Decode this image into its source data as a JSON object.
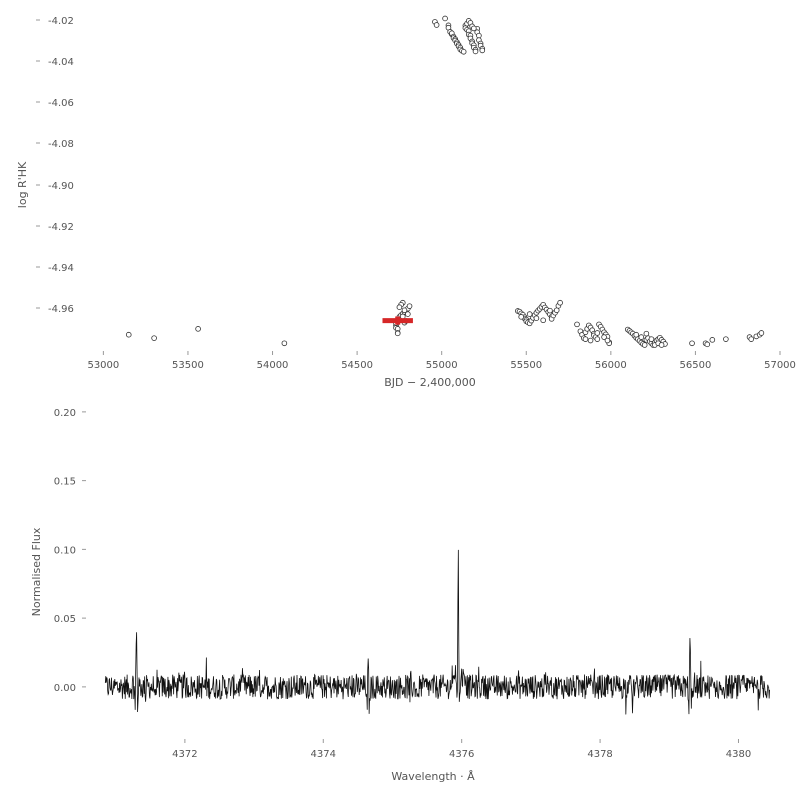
{
  "chart_data": [
    {
      "type": "scatter",
      "title": "",
      "xlabel": "BJD − 2,400,000",
      "ylabel": "log R'HK",
      "xlim": [
        52850,
        57000
      ],
      "ylim": [
        -4.975,
        -4.015
      ],
      "y_inverted": true,
      "grid": false,
      "x_ticks": [
        {
          "v": 53000,
          "label": "53000"
        },
        {
          "v": 53500,
          "label": "53500"
        },
        {
          "v": 54000,
          "label": "54000"
        },
        {
          "v": 54500,
          "label": "54500"
        },
        {
          "v": 55000,
          "label": "55000"
        },
        {
          "v": 55500,
          "label": "55500"
        },
        {
          "v": 56000,
          "label": "56000"
        },
        {
          "v": 56500,
          "label": "56500"
        },
        {
          "v": 57000,
          "label": "57000"
        }
      ],
      "y_ticks": [
        {
          "v": -4.02,
          "label": "-4.02"
        },
        {
          "v": -4.04,
          "label": "-4.04"
        },
        {
          "v": -4.06,
          "label": "-4.06"
        },
        {
          "v": -4.08,
          "label": "-4.08"
        },
        {
          "v": -4.9,
          "label": "-4.90"
        },
        {
          "v": -4.92,
          "label": "-4.92"
        },
        {
          "v": -4.94,
          "label": "-4.94"
        },
        {
          "v": -4.96,
          "label": "-4.96"
        }
      ],
      "marker_color": "#333333",
      "highlight_color": "#d62728",
      "highlight": {
        "x": 54740,
        "y": -4.904,
        "xerr": 90,
        "yerr": 0.012
      },
      "points": [
        [
          53150,
          -4.945
        ],
        [
          53300,
          -4.955
        ],
        [
          53560,
          -4.928
        ],
        [
          54070,
          -4.97
        ],
        [
          54730,
          -4.918
        ],
        [
          54730,
          -4.911
        ],
        [
          54740,
          -4.906
        ],
        [
          54750,
          -4.902
        ],
        [
          54730,
          -4.925
        ],
        [
          54740,
          -4.928
        ],
        [
          54740,
          -4.94
        ],
        [
          54740,
          -4.941
        ],
        [
          54750,
          -4.897
        ],
        [
          54750,
          -4.893
        ],
        [
          54760,
          -4.888
        ],
        [
          54770,
          -4.884
        ],
        [
          54780,
          -4.879
        ],
        [
          54790,
          -4.875
        ],
        [
          54800,
          -4.869
        ],
        [
          54810,
          -4.862
        ],
        [
          54770,
          -4.852
        ],
        [
          54760,
          -4.858
        ],
        [
          54750,
          -4.865
        ],
        [
          54780,
          -4.91
        ],
        [
          54790,
          -4.905
        ],
        [
          54800,
          -4.885
        ],
        [
          54780,
          -4.874
        ],
        [
          54770,
          -4.892
        ],
        [
          54960,
          -4.035
        ],
        [
          54970,
          -4.044
        ],
        [
          55020,
          -4.025
        ],
        [
          55040,
          -4.045
        ],
        [
          55040,
          -4.052
        ],
        [
          55050,
          -4.064
        ],
        [
          55060,
          -4.071
        ],
        [
          55060,
          -4.068
        ],
        [
          55070,
          -4.078
        ],
        [
          55070,
          -4.082
        ],
        [
          55080,
          -4.085
        ],
        [
          55080,
          -4.089
        ],
        [
          55090,
          -4.094
        ],
        [
          55090,
          -4.098
        ],
        [
          55100,
          -4.102
        ],
        [
          55100,
          -4.106
        ],
        [
          55110,
          -4.11
        ],
        [
          55110,
          -4.115
        ],
        [
          55120,
          -4.119
        ],
        [
          55130,
          -4.122
        ],
        [
          55140,
          -4.046
        ],
        [
          55140,
          -4.053
        ],
        [
          55150,
          -4.04
        ],
        [
          55150,
          -4.058
        ],
        [
          55160,
          -4.062
        ],
        [
          55160,
          -4.072
        ],
        [
          55170,
          -4.075
        ],
        [
          55170,
          -4.083
        ],
        [
          55180,
          -4.092
        ],
        [
          55180,
          -4.097
        ],
        [
          55190,
          -4.103
        ],
        [
          55190,
          -4.11
        ],
        [
          55200,
          -4.116
        ],
        [
          55200,
          -4.121
        ],
        [
          55210,
          -4.055
        ],
        [
          55210,
          -4.065
        ],
        [
          55220,
          -4.075
        ],
        [
          55220,
          -4.088
        ],
        [
          55230,
          -4.098
        ],
        [
          55230,
          -4.104
        ],
        [
          55240,
          -4.113
        ],
        [
          55240,
          -4.118
        ],
        [
          55160,
          -4.032
        ],
        [
          55170,
          -4.038
        ],
        [
          55180,
          -4.048
        ],
        [
          55190,
          -4.054
        ],
        [
          55450,
          -4.876
        ],
        [
          55460,
          -4.878
        ],
        [
          55470,
          -4.883
        ],
        [
          55480,
          -4.887
        ],
        [
          55490,
          -4.894
        ],
        [
          55490,
          -4.898
        ],
        [
          55500,
          -4.901
        ],
        [
          55500,
          -4.906
        ],
        [
          55510,
          -4.909
        ],
        [
          55520,
          -4.912
        ],
        [
          55530,
          -4.904
        ],
        [
          55540,
          -4.896
        ],
        [
          55550,
          -4.888
        ],
        [
          55560,
          -4.881
        ],
        [
          55570,
          -4.875
        ],
        [
          55580,
          -4.87
        ],
        [
          55590,
          -4.864
        ],
        [
          55600,
          -4.858
        ],
        [
          55610,
          -4.866
        ],
        [
          55620,
          -4.872
        ],
        [
          55630,
          -4.879
        ],
        [
          55640,
          -4.886
        ],
        [
          55650,
          -4.893
        ],
        [
          55650,
          -4.899
        ],
        [
          55660,
          -4.889
        ],
        [
          55670,
          -4.881
        ],
        [
          55680,
          -4.874
        ],
        [
          55690,
          -4.861
        ],
        [
          55700,
          -4.852
        ],
        [
          55470,
          -4.893
        ],
        [
          55520,
          -4.885
        ],
        [
          55560,
          -4.897
        ],
        [
          55600,
          -4.903
        ],
        [
          55640,
          -4.875
        ],
        [
          55800,
          -4.915
        ],
        [
          55820,
          -4.935
        ],
        [
          55830,
          -4.945
        ],
        [
          55840,
          -4.955
        ],
        [
          55850,
          -4.938
        ],
        [
          55860,
          -4.928
        ],
        [
          55870,
          -4.918
        ],
        [
          55880,
          -4.924
        ],
        [
          55890,
          -4.932
        ],
        [
          55900,
          -4.942
        ],
        [
          55900,
          -4.947
        ],
        [
          55910,
          -4.952
        ],
        [
          55920,
          -4.958
        ],
        [
          55930,
          -4.915
        ],
        [
          55940,
          -4.922
        ],
        [
          55950,
          -4.93
        ],
        [
          55960,
          -4.938
        ],
        [
          55970,
          -4.944
        ],
        [
          55980,
          -4.951
        ],
        [
          55990,
          -4.967
        ],
        [
          55990,
          -4.97
        ],
        [
          55880,
          -4.962
        ],
        [
          55850,
          -4.958
        ],
        [
          55920,
          -4.94
        ],
        [
          55960,
          -4.952
        ],
        [
          55980,
          -4.962
        ],
        [
          56100,
          -4.93
        ],
        [
          56110,
          -4.934
        ],
        [
          56120,
          -4.938
        ],
        [
          56130,
          -4.942
        ],
        [
          56140,
          -4.948
        ],
        [
          56150,
          -4.954
        ],
        [
          56160,
          -4.958
        ],
        [
          56170,
          -4.963
        ],
        [
          56180,
          -4.968
        ],
        [
          56190,
          -4.972
        ],
        [
          56200,
          -4.975
        ],
        [
          56210,
          -4.96
        ],
        [
          56220,
          -4.955
        ],
        [
          56230,
          -4.965
        ],
        [
          56240,
          -4.97
        ],
        [
          56250,
          -4.975
        ],
        [
          56260,
          -4.968
        ],
        [
          56270,
          -4.962
        ],
        [
          56280,
          -4.958
        ],
        [
          56290,
          -4.954
        ],
        [
          56300,
          -4.96
        ],
        [
          56310,
          -4.965
        ],
        [
          56320,
          -4.972
        ],
        [
          56150,
          -4.945
        ],
        [
          56180,
          -4.952
        ],
        [
          56210,
          -4.942
        ],
        [
          56240,
          -4.958
        ],
        [
          56260,
          -4.975
        ],
        [
          56280,
          -4.97
        ],
        [
          56300,
          -4.975
        ],
        [
          56480,
          -4.97
        ],
        [
          56560,
          -4.97
        ],
        [
          56570,
          -4.973
        ],
        [
          56600,
          -4.96
        ],
        [
          56680,
          -4.958
        ],
        [
          56820,
          -4.952
        ],
        [
          56830,
          -4.958
        ],
        [
          56860,
          -4.95
        ],
        [
          56880,
          -4.945
        ],
        [
          56890,
          -4.94
        ]
      ]
    },
    {
      "type": "line",
      "title": "",
      "xlabel": "Wavelength · Å",
      "ylabel": "Normalised Flux",
      "xlim": [
        4370.6,
        4380.6
      ],
      "ylim": [
        -0.035,
        0.205
      ],
      "grid": false,
      "line_color": "#111111",
      "x_ticks": [
        {
          "v": 4372,
          "label": "4372"
        },
        {
          "v": 4374,
          "label": "4374"
        },
        {
          "v": 4376,
          "label": "4376"
        },
        {
          "v": 4378,
          "label": "4378"
        },
        {
          "v": 4380,
          "label": "4380"
        }
      ],
      "y_ticks": [
        {
          "v": 0.0,
          "label": "0.00"
        },
        {
          "v": 0.05,
          "label": "0.05"
        },
        {
          "v": 0.1,
          "label": "0.10"
        },
        {
          "v": 0.15,
          "label": "0.15"
        },
        {
          "v": 0.2,
          "label": "0.20"
        }
      ],
      "spikes": [
        {
          "x": 4371.3,
          "y": 0.052,
          "neg": -0.025
        },
        {
          "x": 4374.65,
          "y": 0.022,
          "neg": -0.02
        },
        {
          "x": 4375.95,
          "y": 0.115,
          "neg": -0.012
        },
        {
          "x": 4379.3,
          "y": 0.042,
          "neg": -0.025
        }
      ],
      "noise_amplitude": 0.009
    }
  ]
}
